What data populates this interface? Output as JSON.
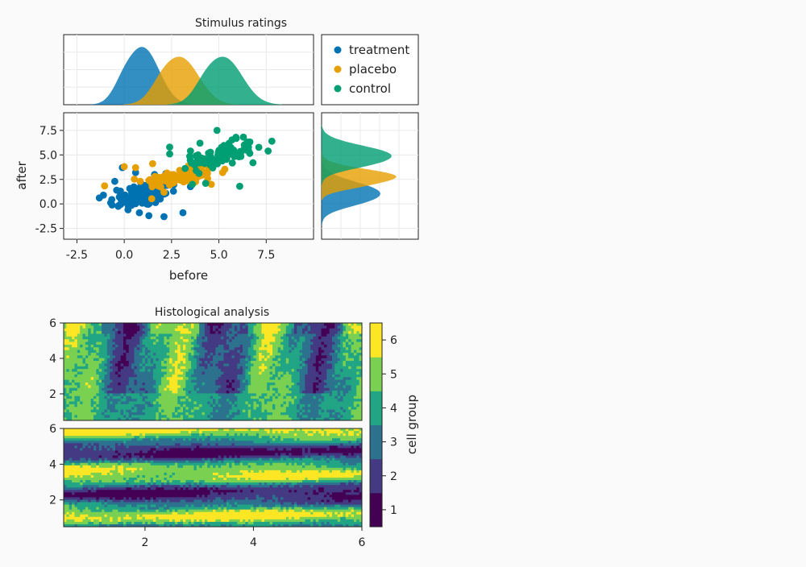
{
  "chart_data": [
    {
      "type": "scatter",
      "title": "Stimulus ratings",
      "xlabel": "before",
      "ylabel": "after",
      "xlim": [
        -3.2,
        10.0
      ],
      "ylim": [
        -3.6,
        9.3
      ],
      "x_ticks": [
        "-2.5",
        "0.0",
        "2.5",
        "5.0",
        "7.5"
      ],
      "y_ticks": [
        "-2.5",
        "0.0",
        "2.5",
        "5.0",
        "7.5"
      ],
      "legend": [
        "treatment",
        "placebo",
        "control"
      ],
      "legend_position": "top-right",
      "grid": true,
      "colors": {
        "treatment": "#0072b2",
        "placebo": "#e69f00",
        "control": "#009e73"
      },
      "series": [
        {
          "name": "treatment",
          "x_center": 1.0,
          "y_center": 1.0,
          "x_std": 0.9,
          "y_std": 1.1,
          "points": [
            [
              -0.1,
              3.7
            ],
            [
              -0.5,
              2.3
            ],
            [
              -1.1,
              0.9
            ],
            [
              0.2,
              -0.6
            ],
            [
              0.8,
              -0.9
            ],
            [
              1.3,
              -1.2
            ],
            [
              2.1,
              -1.3
            ],
            [
              3.1,
              -0.9
            ],
            [
              0.6,
              3.2
            ],
            [
              1.6,
              3.0
            ],
            [
              2.2,
              3.1
            ],
            [
              -0.4,
              1.4
            ],
            [
              0.4,
              0.2
            ],
            [
              1.9,
              0.5
            ],
            [
              2.6,
              1.3
            ]
          ]
        },
        {
          "name": "placebo",
          "x_center": 3.0,
          "y_center": 2.8,
          "x_std": 1.0,
          "y_std": 0.7,
          "points": [
            [
              0.0,
              3.8
            ],
            [
              0.6,
              3.7
            ],
            [
              1.5,
              4.1
            ],
            [
              2.1,
              1.2
            ],
            [
              3.4,
              3.9
            ],
            [
              4.2,
              4.0
            ],
            [
              4.6,
              2.0
            ],
            [
              5.2,
              3.2
            ],
            [
              1.3,
              2.4
            ],
            [
              2.4,
              2.1
            ]
          ]
        },
        {
          "name": "control",
          "x_center": 5.2,
          "y_center": 5.0,
          "x_std": 0.8,
          "y_std": 0.9,
          "points": [
            [
              3.5,
              5.4
            ],
            [
              3.9,
              5.0
            ],
            [
              2.4,
              5.1
            ],
            [
              2.4,
              5.8
            ],
            [
              4.0,
              6.2
            ],
            [
              4.9,
              7.5
            ],
            [
              5.9,
              6.8
            ],
            [
              7.8,
              6.4
            ],
            [
              7.6,
              5.4
            ],
            [
              6.1,
              1.8
            ],
            [
              3.6,
              2.0
            ],
            [
              4.3,
              2.1
            ],
            [
              6.8,
              4.2
            ],
            [
              3.8,
              3.4
            ]
          ]
        }
      ]
    },
    {
      "type": "heatmap",
      "title": "Histological analysis",
      "panel": "top",
      "xlim": [
        0.5,
        6.0
      ],
      "ylim": [
        0.5,
        6.0
      ],
      "y_ticks": [
        "2",
        "4",
        "6"
      ],
      "levels": [
        1,
        2,
        3,
        4,
        5,
        6
      ]
    },
    {
      "type": "heatmap",
      "panel": "bottom",
      "xlim": [
        0.5,
        6.0
      ],
      "ylim": [
        0.5,
        6.0
      ],
      "x_ticks": [
        "2",
        "4",
        "6"
      ],
      "y_ticks": [
        "2",
        "4",
        "6"
      ],
      "levels": [
        1,
        2,
        3,
        4,
        5,
        6
      ]
    }
  ],
  "colorbar": {
    "label": "cell group",
    "ticks": [
      "1",
      "2",
      "3",
      "4",
      "5",
      "6"
    ],
    "colors": [
      "#440154",
      "#443a83",
      "#2c728e",
      "#21a585",
      "#7ad151",
      "#fde725"
    ]
  }
}
